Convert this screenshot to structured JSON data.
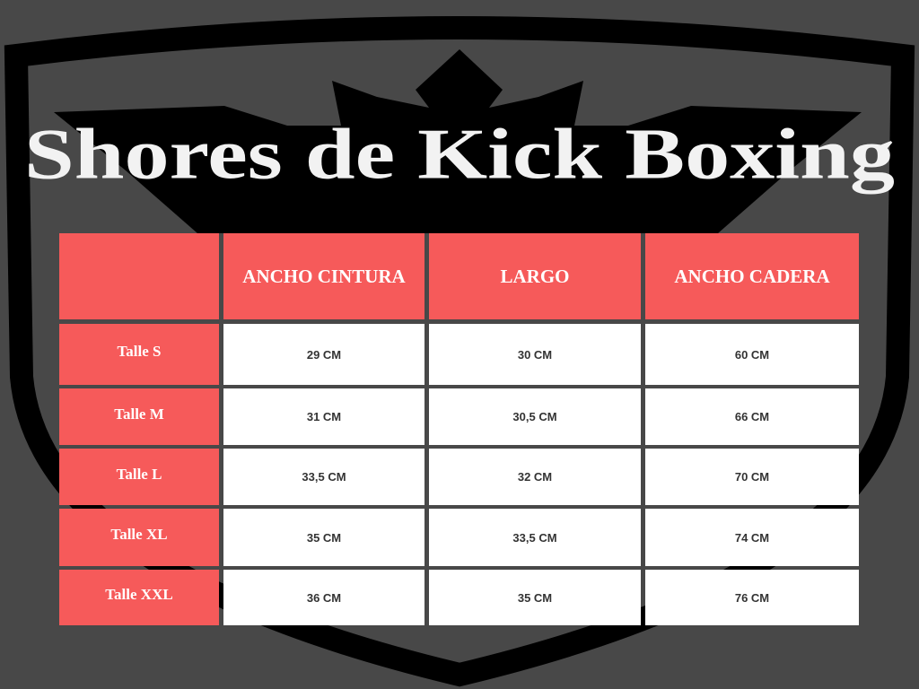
{
  "title": "Shores de Kick Boxing",
  "table": {
    "columns": [
      "ANCHO CINTURA",
      "LARGO",
      "ANCHO CADERA"
    ],
    "rows": [
      {
        "label": "Talle S",
        "cells": [
          "29 CM",
          "30 CM",
          "60 CM"
        ]
      },
      {
        "label": "Talle M",
        "cells": [
          "31 CM",
          "30,5 CM",
          "66 CM"
        ]
      },
      {
        "label": "Talle L",
        "cells": [
          "33,5 CM",
          "32 CM",
          "70 CM"
        ]
      },
      {
        "label": "Talle XL",
        "cells": [
          "35 CM",
          "33,5 CM",
          "74 CM"
        ]
      },
      {
        "label": "Talle XXL",
        "cells": [
          "36 CM",
          "35 CM",
          "76 CM"
        ]
      }
    ]
  }
}
